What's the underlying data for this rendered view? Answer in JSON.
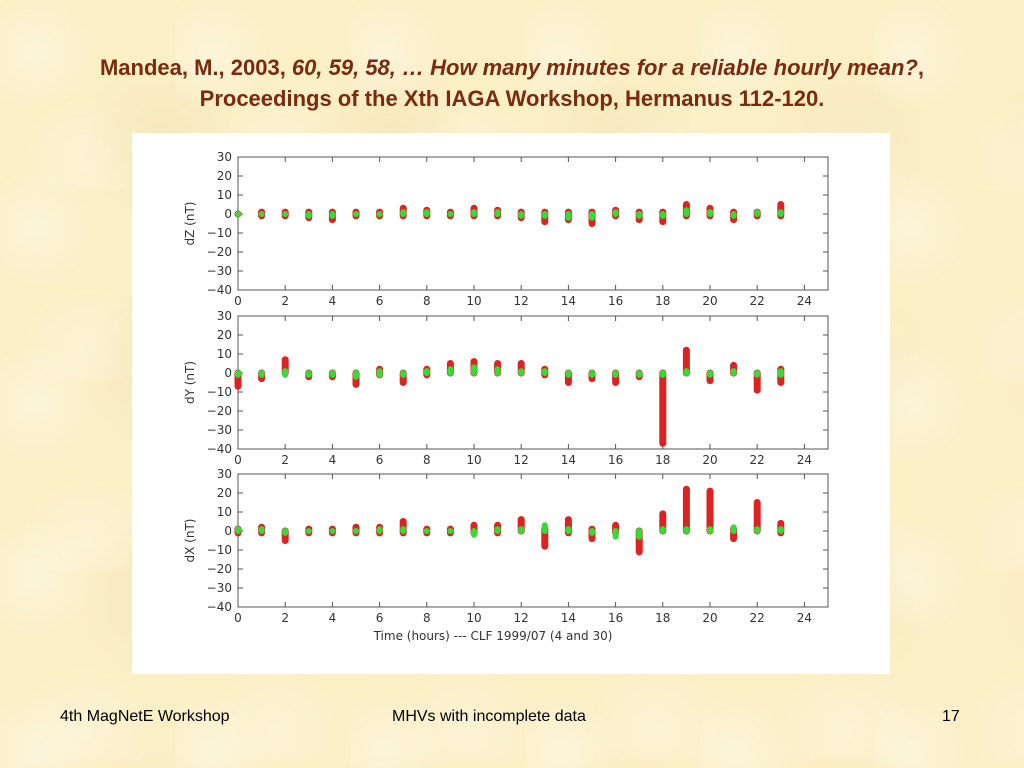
{
  "slide": {
    "title_line1_pre": "Mandea, M., 2003, ",
    "title_line1_italic": "60, 59, 58, … How many minutes for a reliable hourly mean?",
    "title_line1_post": ",",
    "title_line2": "Proceedings of the Xth IAGA Workshop, Hermanus 112-120.",
    "footer_left": "4th MagNetE Workshop",
    "footer_center": "MHVs with incomplete data",
    "footer_right": "17"
  },
  "colors": {
    "title": "#7a2a10",
    "red": "#dd2222",
    "green": "#33dd33"
  },
  "chart_data": {
    "type": "scatter",
    "xlabel": "Time (hours) --- CLF 1999/07 (4 and 30)",
    "xlim": [
      0,
      25
    ],
    "xticks": [
      0,
      2,
      4,
      6,
      8,
      10,
      12,
      14,
      16,
      18,
      20,
      22,
      24
    ],
    "ylim": [
      -40,
      30
    ],
    "yticks": [
      30,
      20,
      10,
      0,
      -10,
      -20,
      -30,
      -40
    ],
    "panels": [
      {
        "ylabel": "dZ (nT)",
        "red_ranges": [
          [
            0,
            0,
            0
          ],
          [
            1,
            -1,
            1
          ],
          [
            2,
            -1,
            1
          ],
          [
            3,
            -2,
            1
          ],
          [
            4,
            -3,
            1
          ],
          [
            5,
            -1,
            1
          ],
          [
            6,
            -1,
            1
          ],
          [
            7,
            -1,
            3
          ],
          [
            8,
            -1,
            2
          ],
          [
            9,
            -1,
            1
          ],
          [
            10,
            -1,
            3
          ],
          [
            11,
            -1,
            2
          ],
          [
            12,
            -2,
            1
          ],
          [
            13,
            -4,
            1
          ],
          [
            14,
            -3,
            1
          ],
          [
            15,
            -5,
            1
          ],
          [
            16,
            -1,
            2
          ],
          [
            17,
            -3,
            1
          ],
          [
            18,
            -4,
            1
          ],
          [
            19,
            -1,
            5
          ],
          [
            20,
            -1,
            3
          ],
          [
            21,
            -3,
            1
          ],
          [
            22,
            -1,
            1
          ],
          [
            23,
            -1,
            5
          ]
        ],
        "green_ranges": [
          [
            0,
            0,
            0
          ],
          [
            1,
            0,
            0
          ],
          [
            2,
            0,
            0
          ],
          [
            3,
            -1,
            0
          ],
          [
            4,
            -1,
            0
          ],
          [
            5,
            0,
            0
          ],
          [
            6,
            0,
            0
          ],
          [
            7,
            0,
            1
          ],
          [
            8,
            0,
            1
          ],
          [
            9,
            0,
            0
          ],
          [
            10,
            0,
            1
          ],
          [
            11,
            0,
            1
          ],
          [
            12,
            -1,
            0
          ],
          [
            13,
            -1,
            0
          ],
          [
            14,
            -2,
            0
          ],
          [
            15,
            -2,
            0
          ],
          [
            16,
            0,
            1
          ],
          [
            17,
            -1,
            0
          ],
          [
            18,
            -1,
            0
          ],
          [
            19,
            0,
            2
          ],
          [
            20,
            0,
            1
          ],
          [
            21,
            -1,
            0
          ],
          [
            22,
            0,
            1
          ],
          [
            23,
            0,
            1
          ]
        ]
      },
      {
        "ylabel": "dY (nT)",
        "red_ranges": [
          [
            0,
            -7,
            0
          ],
          [
            1,
            -3,
            0
          ],
          [
            2,
            0,
            7
          ],
          [
            3,
            -2,
            0
          ],
          [
            4,
            -2,
            0
          ],
          [
            5,
            -6,
            0
          ],
          [
            6,
            -1,
            2
          ],
          [
            7,
            -5,
            0
          ],
          [
            8,
            -1,
            2
          ],
          [
            9,
            0,
            5
          ],
          [
            10,
            0,
            6
          ],
          [
            11,
            0,
            5
          ],
          [
            12,
            0,
            5
          ],
          [
            13,
            -1,
            2
          ],
          [
            14,
            -5,
            0
          ],
          [
            15,
            -3,
            0
          ],
          [
            16,
            -5,
            0
          ],
          [
            17,
            -2,
            0
          ],
          [
            18,
            -37,
            0
          ],
          [
            19,
            0,
            12
          ],
          [
            20,
            -4,
            0
          ],
          [
            21,
            0,
            4
          ],
          [
            22,
            -9,
            0
          ],
          [
            23,
            -5,
            2
          ]
        ],
        "green_ranges": [
          [
            0,
            -1,
            0
          ],
          [
            1,
            -1,
            0
          ],
          [
            2,
            -1,
            1
          ],
          [
            3,
            -1,
            0
          ],
          [
            4,
            -1,
            0
          ],
          [
            5,
            -2,
            0
          ],
          [
            6,
            -1,
            1
          ],
          [
            7,
            -1,
            0
          ],
          [
            8,
            0,
            1
          ],
          [
            9,
            0,
            2
          ],
          [
            10,
            0,
            3
          ],
          [
            11,
            0,
            2
          ],
          [
            12,
            0,
            1
          ],
          [
            13,
            0,
            1
          ],
          [
            14,
            -1,
            0
          ],
          [
            15,
            -1,
            0
          ],
          [
            16,
            -1,
            0
          ],
          [
            17,
            -1,
            0
          ],
          [
            18,
            -1,
            0
          ],
          [
            19,
            0,
            1
          ],
          [
            20,
            -1,
            0
          ],
          [
            21,
            0,
            1
          ],
          [
            22,
            -1,
            0
          ],
          [
            23,
            -1,
            1
          ]
        ]
      },
      {
        "ylabel": "dX (nT)",
        "red_ranges": [
          [
            0,
            -1,
            1
          ],
          [
            1,
            -1,
            2
          ],
          [
            2,
            -5,
            0
          ],
          [
            3,
            -1,
            1
          ],
          [
            4,
            -1,
            1
          ],
          [
            5,
            -1,
            2
          ],
          [
            6,
            -1,
            2
          ],
          [
            7,
            -1,
            5
          ],
          [
            8,
            -1,
            1
          ],
          [
            9,
            -1,
            1
          ],
          [
            10,
            -1,
            3
          ],
          [
            11,
            -1,
            3
          ],
          [
            12,
            0,
            6
          ],
          [
            13,
            -8,
            1
          ],
          [
            14,
            -1,
            6
          ],
          [
            15,
            -4,
            1
          ],
          [
            16,
            -1,
            3
          ],
          [
            17,
            -11,
            0
          ],
          [
            18,
            0,
            9
          ],
          [
            19,
            0,
            22
          ],
          [
            20,
            0,
            21
          ],
          [
            21,
            -4,
            1
          ],
          [
            22,
            0,
            15
          ],
          [
            23,
            -1,
            4
          ]
        ],
        "green_ranges": [
          [
            0,
            0,
            1
          ],
          [
            1,
            0,
            1
          ],
          [
            2,
            -1,
            0
          ],
          [
            3,
            0,
            0
          ],
          [
            4,
            0,
            0
          ],
          [
            5,
            0,
            0
          ],
          [
            6,
            0,
            1
          ],
          [
            7,
            0,
            1
          ],
          [
            8,
            0,
            0
          ],
          [
            9,
            0,
            0
          ],
          [
            10,
            -2,
            0
          ],
          [
            11,
            0,
            1
          ],
          [
            12,
            0,
            1
          ],
          [
            13,
            0,
            3
          ],
          [
            14,
            0,
            1
          ],
          [
            15,
            -1,
            0
          ],
          [
            16,
            -3,
            0
          ],
          [
            17,
            -3,
            0
          ],
          [
            18,
            0,
            1
          ],
          [
            19,
            0,
            1
          ],
          [
            20,
            0,
            1
          ],
          [
            21,
            0,
            2
          ],
          [
            22,
            0,
            1
          ],
          [
            23,
            0,
            1
          ]
        ]
      }
    ]
  }
}
